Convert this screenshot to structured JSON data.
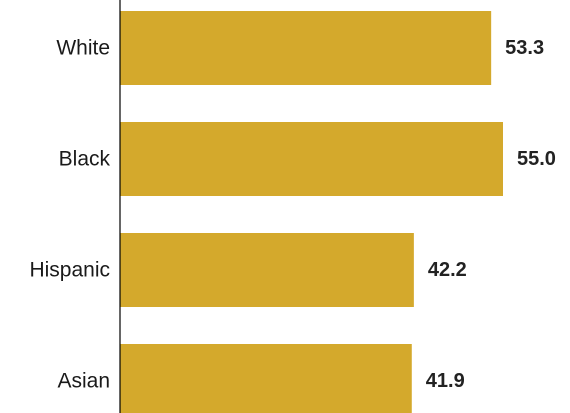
{
  "chart_data": {
    "type": "bar",
    "orientation": "horizontal",
    "categories": [
      "White",
      "Black",
      "Hispanic",
      "Asian"
    ],
    "values": [
      53.3,
      55.0,
      42.2,
      41.9
    ],
    "value_labels": [
      "53.3",
      "55.0",
      "42.2",
      "41.9"
    ],
    "title": "",
    "xlabel": "",
    "ylabel": "",
    "xlim": [
      0,
      55.0
    ],
    "grid": false,
    "legend": "none",
    "bar_color": "#D4A92C",
    "axis_color": "#000000"
  }
}
